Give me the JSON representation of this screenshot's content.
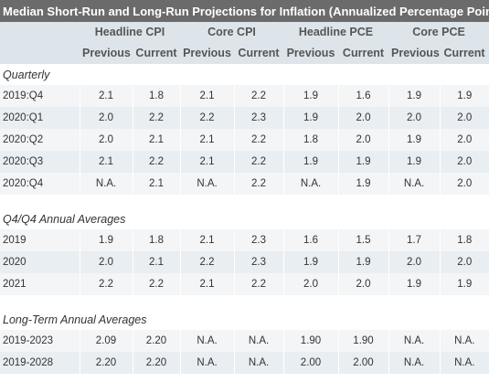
{
  "title": "Median Short-Run and Long-Run Projections for Inflation (Annualized Percentage Points)",
  "groups": [
    "Headline CPI",
    "Core CPI",
    "Headline PCE",
    "Core PCE"
  ],
  "subheaders": [
    "Previous",
    "Current",
    "Previous",
    "Current",
    "Previous",
    "Current",
    "Previous",
    "Current"
  ],
  "sections": [
    {
      "label": "Quarterly",
      "rows": [
        {
          "label": "2019:Q4",
          "values": [
            "2.1",
            "1.8",
            "2.1",
            "2.2",
            "1.9",
            "1.6",
            "1.9",
            "1.9"
          ]
        },
        {
          "label": "2020:Q1",
          "values": [
            "2.0",
            "2.2",
            "2.2",
            "2.3",
            "1.9",
            "2.0",
            "2.0",
            "2.0"
          ]
        },
        {
          "label": "2020:Q2",
          "values": [
            "2.0",
            "2.1",
            "2.1",
            "2.2",
            "1.8",
            "2.0",
            "1.9",
            "2.0"
          ]
        },
        {
          "label": "2020:Q3",
          "values": [
            "2.1",
            "2.2",
            "2.1",
            "2.2",
            "1.9",
            "1.9",
            "1.9",
            "2.0"
          ]
        },
        {
          "label": "2020:Q4",
          "values": [
            "N.A.",
            "2.1",
            "N.A.",
            "2.2",
            "N.A.",
            "1.9",
            "N.A.",
            "2.0"
          ]
        }
      ]
    },
    {
      "label": "Q4/Q4 Annual Averages",
      "rows": [
        {
          "label": "2019",
          "values": [
            "1.9",
            "1.8",
            "2.1",
            "2.3",
            "1.6",
            "1.5",
            "1.7",
            "1.8"
          ]
        },
        {
          "label": "2020",
          "values": [
            "2.0",
            "2.1",
            "2.2",
            "2.3",
            "1.9",
            "1.9",
            "2.0",
            "2.0"
          ]
        },
        {
          "label": "2021",
          "values": [
            "2.2",
            "2.2",
            "2.1",
            "2.2",
            "2.0",
            "2.0",
            "1.9",
            "1.9"
          ]
        }
      ]
    },
    {
      "label": "Long-Term Annual Averages",
      "rows": [
        {
          "label": "2019-2023",
          "values": [
            "2.09",
            "2.20",
            "N.A.",
            "N.A.",
            "1.90",
            "1.90",
            "N.A.",
            "N.A."
          ]
        },
        {
          "label": "2019-2028",
          "values": [
            "2.20",
            "2.20",
            "N.A.",
            "N.A.",
            "2.00",
            "2.00",
            "N.A.",
            "N.A."
          ]
        }
      ]
    }
  ]
}
